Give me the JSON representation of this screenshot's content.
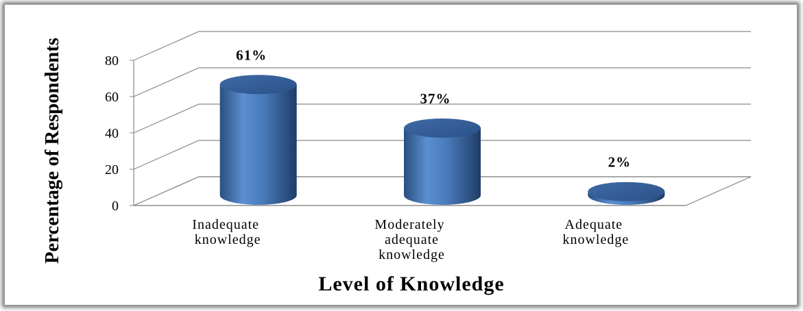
{
  "chart_data": {
    "type": "bar3d",
    "categories": [
      "Inadequate knowledge",
      "Moderately adequate knowledge",
      "Adequate knowledge"
    ],
    "values": [
      61,
      37,
      2
    ],
    "value_labels": [
      "61%",
      "37%",
      "2%"
    ],
    "color": "#4f81bd",
    "ylim": [
      0,
      80
    ],
    "yticks": [
      0,
      20,
      40,
      60,
      80
    ],
    "grid": true,
    "xlabel": "Level of Knowledge",
    "ylabel": "Percentage of Respondents"
  }
}
